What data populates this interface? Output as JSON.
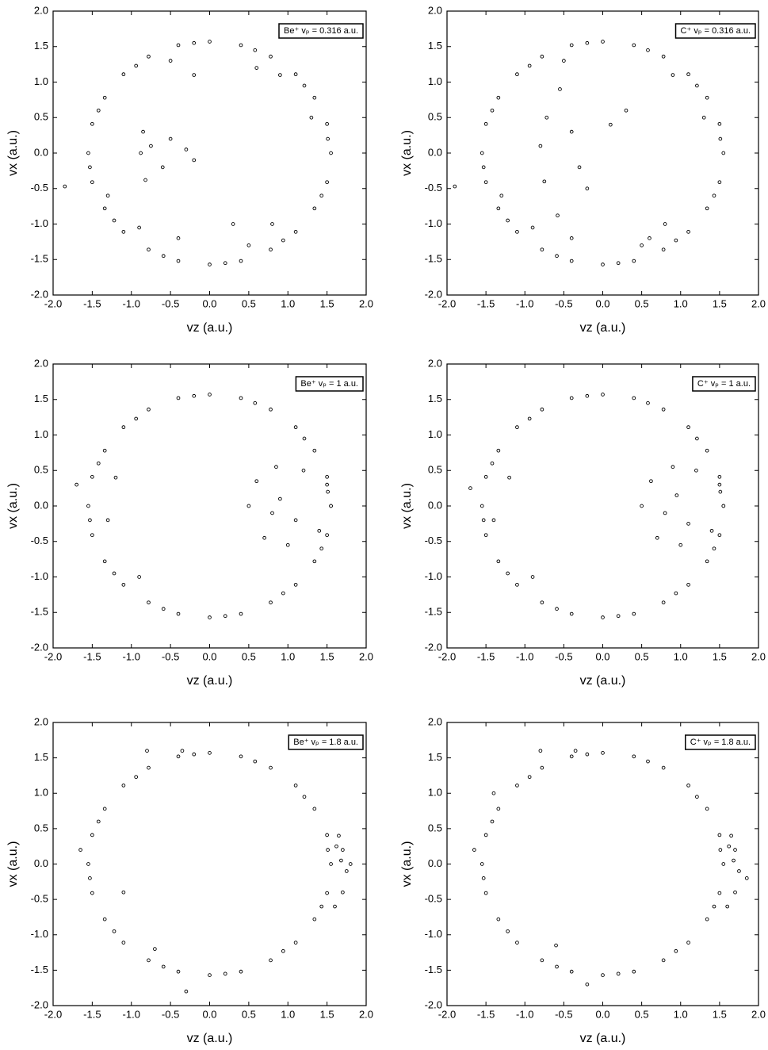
{
  "chart_data": [
    {
      "type": "scatter",
      "annotation": "Be⁺ vₚ = 0.316 a.u.",
      "xlabel": "vz (a.u.)",
      "ylabel": "vx (a.u.)",
      "color": "#000000",
      "xlim": [
        -2,
        2
      ],
      "ylim": [
        -2,
        2
      ],
      "xticks": [
        {
          "value": -2,
          "label": "-2.0"
        },
        {
          "value": -1.5,
          "label": "-1.5"
        },
        {
          "value": -1,
          "label": "-1.0"
        },
        {
          "value": -0.5,
          "label": "-0.5"
        },
        {
          "value": 0,
          "label": "0.0"
        },
        {
          "value": 0.5,
          "label": "0.5"
        },
        {
          "value": 1,
          "label": "1.0"
        },
        {
          "value": 1.5,
          "label": "1.5"
        },
        {
          "value": 2,
          "label": "2.0"
        }
      ],
      "yticks": [
        {
          "value": -2,
          "label": "-2.0"
        },
        {
          "value": -1.5,
          "label": "-1.5"
        },
        {
          "value": -1,
          "label": "-1.0"
        },
        {
          "value": -0.5,
          "label": "-0.5"
        },
        {
          "value": 0,
          "label": "0.0"
        },
        {
          "value": 0.5,
          "label": "0.5"
        },
        {
          "value": 1,
          "label": "1.0"
        },
        {
          "value": 1.5,
          "label": "1.5"
        },
        {
          "value": 2,
          "label": "2.0"
        }
      ],
      "x": [
        1.55,
        1.5,
        1.34,
        1.1,
        0.78,
        0.4,
        0,
        -0.4,
        -0.78,
        -1.1,
        -1.34,
        -1.5,
        -1.55,
        -1.5,
        -1.34,
        -1.1,
        -0.78,
        -0.4,
        0,
        0.4,
        0.78,
        1.1,
        1.34,
        1.5,
        1.51,
        1.21,
        0.58,
        -0.2,
        -0.94,
        -1.42,
        -1.53,
        -1.22,
        -0.59,
        0.2,
        0.94,
        1.43,
        1.3,
        -1.3,
        0.9,
        -0.9,
        0.5,
        -0.5,
        -0.85,
        -0.82,
        -0.88,
        -0.75,
        -0.6,
        -0.5,
        -0.3,
        -0.2,
        0.3,
        -0.2,
        0.6,
        -0.4,
        0.8,
        -1.85
      ],
      "y": [
        0,
        0.41,
        0.78,
        1.11,
        1.36,
        1.52,
        1.57,
        1.52,
        1.36,
        1.11,
        0.78,
        0.41,
        0,
        -0.41,
        -0.78,
        -1.11,
        -1.36,
        -1.52,
        -1.57,
        -1.52,
        -1.36,
        -1.11,
        -0.78,
        -0.41,
        0.2,
        0.95,
        1.45,
        1.55,
        1.23,
        0.6,
        -0.2,
        -0.95,
        -1.45,
        -1.55,
        -1.23,
        -0.6,
        0.5,
        -0.6,
        1.1,
        -1.05,
        -1.3,
        1.3,
        0.3,
        -0.38,
        0,
        0.1,
        -0.2,
        0.2,
        0.05,
        -0.1,
        -1.0,
        1.1,
        1.2,
        -1.2,
        -1.0,
        -0.47
      ]
    },
    {
      "type": "scatter",
      "annotation": "C⁺ vₚ = 0.316 a.u.",
      "xlabel": "vz (a.u.)",
      "ylabel": "vx (a.u.)",
      "color": "#000000",
      "xlim": [
        -2,
        2
      ],
      "ylim": [
        -2,
        2
      ],
      "xticks": [
        {
          "value": -2,
          "label": "-2.0"
        },
        {
          "value": -1.5,
          "label": "-1.5"
        },
        {
          "value": -1,
          "label": "-1.0"
        },
        {
          "value": -0.5,
          "label": "-0.5"
        },
        {
          "value": 0,
          "label": "0.0"
        },
        {
          "value": 0.5,
          "label": "0.5"
        },
        {
          "value": 1,
          "label": "1.0"
        },
        {
          "value": 1.5,
          "label": "1.5"
        },
        {
          "value": 2,
          "label": "2.0"
        }
      ],
      "yticks": [
        {
          "value": -2,
          "label": "-2.0"
        },
        {
          "value": -1.5,
          "label": "-1.5"
        },
        {
          "value": -1,
          "label": "-1.0"
        },
        {
          "value": -0.5,
          "label": "-0.5"
        },
        {
          "value": 0,
          "label": "0.0"
        },
        {
          "value": 0.5,
          "label": "0.5"
        },
        {
          "value": 1,
          "label": "1.0"
        },
        {
          "value": 1.5,
          "label": "1.5"
        },
        {
          "value": 2,
          "label": "2.0"
        }
      ],
      "x": [
        1.55,
        1.5,
        1.34,
        1.1,
        0.78,
        0.4,
        0,
        -0.4,
        -0.78,
        -1.1,
        -1.34,
        -1.5,
        -1.55,
        -1.5,
        -1.34,
        -1.1,
        -0.78,
        -0.4,
        0,
        0.4,
        0.78,
        1.1,
        1.34,
        1.5,
        1.51,
        1.21,
        0.58,
        -0.2,
        -0.94,
        -1.42,
        -1.53,
        -1.22,
        -0.59,
        0.2,
        0.94,
        1.43,
        1.3,
        -1.3,
        0.9,
        -0.9,
        0.5,
        -0.5,
        -0.55,
        -0.72,
        -0.8,
        -0.75,
        -0.58,
        -0.4,
        -0.3,
        0.1,
        0.3,
        -0.2,
        0.6,
        -0.4,
        0.8,
        -1.9
      ],
      "y": [
        0,
        0.41,
        0.78,
        1.11,
        1.36,
        1.52,
        1.57,
        1.52,
        1.36,
        1.11,
        0.78,
        0.41,
        0,
        -0.41,
        -0.78,
        -1.11,
        -1.36,
        -1.52,
        -1.57,
        -1.52,
        -1.36,
        -1.11,
        -0.78,
        -0.41,
        0.2,
        0.95,
        1.45,
        1.55,
        1.23,
        0.6,
        -0.2,
        -0.95,
        -1.45,
        -1.55,
        -1.23,
        -0.6,
        0.5,
        -0.6,
        1.1,
        -1.05,
        -1.3,
        1.3,
        0.9,
        0.5,
        0.1,
        -0.4,
        -0.88,
        0.3,
        -0.2,
        0.4,
        0.6,
        -0.5,
        -1.2,
        -1.2,
        -1.0,
        -0.47
      ]
    },
    {
      "type": "scatter",
      "annotation": "Be⁺ vₚ = 1 a.u.",
      "xlabel": "vz (a.u.)",
      "ylabel": "vx (a.u.)",
      "color": "#000000",
      "xlim": [
        -2,
        2
      ],
      "ylim": [
        -2,
        2
      ],
      "xticks": [
        {
          "value": -2,
          "label": "-2.0"
        },
        {
          "value": -1.5,
          "label": "-1.5"
        },
        {
          "value": -1,
          "label": "-1.0"
        },
        {
          "value": -0.5,
          "label": "-0.5"
        },
        {
          "value": 0,
          "label": "0.0"
        },
        {
          "value": 0.5,
          "label": "0.5"
        },
        {
          "value": 1,
          "label": "1.0"
        },
        {
          "value": 1.5,
          "label": "1.5"
        },
        {
          "value": 2,
          "label": "2.0"
        }
      ],
      "yticks": [
        {
          "value": -2,
          "label": "-2.0"
        },
        {
          "value": -1.5,
          "label": "-1.5"
        },
        {
          "value": -1,
          "label": "-1.0"
        },
        {
          "value": -0.5,
          "label": "-0.5"
        },
        {
          "value": 0,
          "label": "0.0"
        },
        {
          "value": 0.5,
          "label": "0.5"
        },
        {
          "value": 1,
          "label": "1.0"
        },
        {
          "value": 1.5,
          "label": "1.5"
        },
        {
          "value": 2,
          "label": "2.0"
        }
      ],
      "x": [
        1.55,
        1.5,
        1.34,
        1.1,
        0.78,
        0.4,
        0,
        -0.4,
        -0.78,
        -1.1,
        -1.34,
        -1.5,
        -1.55,
        -1.5,
        -1.34,
        -1.1,
        -0.78,
        -0.4,
        0,
        0.4,
        0.78,
        1.1,
        1.34,
        1.5,
        1.51,
        1.21,
        0.58,
        -0.2,
        -0.94,
        -1.42,
        -1.53,
        -1.22,
        -0.59,
        0.2,
        0.94,
        1.43,
        0.5,
        0.6,
        0.85,
        1.2,
        1.5,
        1.55,
        1.4,
        1.0,
        0.7,
        0.9,
        1.1,
        0.8,
        -1.2,
        -0.9,
        -1.3,
        -1.7
      ],
      "y": [
        0,
        0.41,
        0.78,
        1.11,
        1.36,
        1.52,
        1.57,
        1.52,
        1.36,
        1.11,
        0.78,
        0.41,
        0,
        -0.41,
        -0.78,
        -1.11,
        -1.36,
        -1.52,
        -1.57,
        -1.52,
        -1.36,
        -1.11,
        -0.78,
        -0.41,
        0.2,
        0.95,
        1.45,
        1.55,
        1.23,
        0.6,
        -0.2,
        -0.95,
        -1.45,
        -1.55,
        -1.23,
        -0.6,
        0,
        0.35,
        0.55,
        0.5,
        0.3,
        0,
        -0.35,
        -0.55,
        -0.45,
        0.1,
        -0.2,
        -0.1,
        0.4,
        -1.0,
        -0.2,
        0.3
      ]
    },
    {
      "type": "scatter",
      "annotation": "C⁺ vₚ = 1 a.u.",
      "xlabel": "vz (a.u.)",
      "ylabel": "vx (a.u.)",
      "color": "#000000",
      "xlim": [
        -2,
        2
      ],
      "ylim": [
        -2,
        2
      ],
      "xticks": [
        {
          "value": -2,
          "label": "-2.0"
        },
        {
          "value": -1.5,
          "label": "-1.5"
        },
        {
          "value": -1,
          "label": "-1.0"
        },
        {
          "value": -0.5,
          "label": "-0.5"
        },
        {
          "value": 0,
          "label": "0.0"
        },
        {
          "value": 0.5,
          "label": "0.5"
        },
        {
          "value": 1,
          "label": "1.0"
        },
        {
          "value": 1.5,
          "label": "1.5"
        },
        {
          "value": 2,
          "label": "2.0"
        }
      ],
      "yticks": [
        {
          "value": -2,
          "label": "-2.0"
        },
        {
          "value": -1.5,
          "label": "-1.5"
        },
        {
          "value": -1,
          "label": "-1.0"
        },
        {
          "value": -0.5,
          "label": "-0.5"
        },
        {
          "value": 0,
          "label": "0.0"
        },
        {
          "value": 0.5,
          "label": "0.5"
        },
        {
          "value": 1,
          "label": "1.0"
        },
        {
          "value": 1.5,
          "label": "1.5"
        },
        {
          "value": 2,
          "label": "2.0"
        }
      ],
      "x": [
        1.55,
        1.5,
        1.34,
        1.1,
        0.78,
        0.4,
        0,
        -0.4,
        -0.78,
        -1.1,
        -1.34,
        -1.5,
        -1.55,
        -1.5,
        -1.34,
        -1.1,
        -0.78,
        -0.4,
        0,
        0.4,
        0.78,
        1.1,
        1.34,
        1.5,
        1.51,
        1.21,
        0.58,
        -0.2,
        -0.94,
        -1.42,
        -1.53,
        -1.22,
        -0.59,
        0.2,
        0.94,
        1.43,
        0.5,
        0.62,
        0.9,
        1.2,
        1.5,
        1.55,
        1.4,
        1.0,
        0.7,
        0.95,
        1.1,
        0.8,
        -1.2,
        -0.9,
        -1.4,
        -1.7
      ],
      "y": [
        0,
        0.41,
        0.78,
        1.11,
        1.36,
        1.52,
        1.57,
        1.52,
        1.36,
        1.11,
        0.78,
        0.41,
        0,
        -0.41,
        -0.78,
        -1.11,
        -1.36,
        -1.52,
        -1.57,
        -1.52,
        -1.36,
        -1.11,
        -0.78,
        -0.41,
        0.2,
        0.95,
        1.45,
        1.55,
        1.23,
        0.6,
        -0.2,
        -0.95,
        -1.45,
        -1.55,
        -1.23,
        -0.6,
        0,
        0.35,
        0.55,
        0.5,
        0.3,
        0,
        -0.35,
        -0.55,
        -0.45,
        0.15,
        -0.25,
        -0.1,
        0.4,
        -1.0,
        -0.2,
        0.25
      ]
    },
    {
      "type": "scatter",
      "annotation": "Be⁺ vₚ = 1.8 a.u.",
      "xlabel": "vz (a.u.)",
      "ylabel": "vx (a.u.)",
      "color": "#000000",
      "xlim": [
        -2,
        2
      ],
      "ylim": [
        -2,
        2
      ],
      "xticks": [
        {
          "value": -2,
          "label": "-2.0"
        },
        {
          "value": -1.5,
          "label": "-1.5"
        },
        {
          "value": -1,
          "label": "-1.0"
        },
        {
          "value": -0.5,
          "label": "-0.5"
        },
        {
          "value": 0,
          "label": "0.0"
        },
        {
          "value": 0.5,
          "label": "0.5"
        },
        {
          "value": 1,
          "label": "1.0"
        },
        {
          "value": 1.5,
          "label": "1.5"
        },
        {
          "value": 2,
          "label": "2.0"
        }
      ],
      "yticks": [
        {
          "value": -2,
          "label": "-2.0"
        },
        {
          "value": -1.5,
          "label": "-1.5"
        },
        {
          "value": -1,
          "label": "-1.0"
        },
        {
          "value": -0.5,
          "label": "-0.5"
        },
        {
          "value": 0,
          "label": "0.0"
        },
        {
          "value": 0.5,
          "label": "0.5"
        },
        {
          "value": 1,
          "label": "1.0"
        },
        {
          "value": 1.5,
          "label": "1.5"
        },
        {
          "value": 2,
          "label": "2.0"
        }
      ],
      "x": [
        1.55,
        1.5,
        1.34,
        1.1,
        0.78,
        0.4,
        0,
        -0.4,
        -0.78,
        -1.1,
        -1.34,
        -1.5,
        -1.55,
        -1.5,
        -1.34,
        -1.1,
        -0.78,
        -0.4,
        0,
        0.4,
        0.78,
        1.1,
        1.34,
        1.5,
        1.51,
        1.21,
        0.58,
        -0.2,
        -0.94,
        -1.42,
        -1.53,
        -1.22,
        -0.59,
        0.2,
        0.94,
        1.43,
        1.7,
        1.75,
        1.8,
        1.65,
        1.7,
        1.6,
        1.68,
        1.62,
        -1.65,
        -0.7,
        -1.1,
        -0.3,
        -0.35,
        -0.8
      ],
      "y": [
        0,
        0.41,
        0.78,
        1.11,
        1.36,
        1.52,
        1.57,
        1.52,
        1.36,
        1.11,
        0.78,
        0.41,
        0,
        -0.41,
        -0.78,
        -1.11,
        -1.36,
        -1.52,
        -1.57,
        -1.52,
        -1.36,
        -1.11,
        -0.78,
        -0.41,
        0.2,
        0.95,
        1.45,
        1.55,
        1.23,
        0.6,
        -0.2,
        -0.95,
        -1.45,
        -1.55,
        -1.23,
        -0.6,
        0.2,
        -0.1,
        0,
        0.4,
        -0.4,
        -0.6,
        0.05,
        0.25,
        0.2,
        -1.2,
        -0.4,
        -1.8,
        1.6,
        1.6
      ]
    },
    {
      "type": "scatter",
      "annotation": "C⁺ vₚ = 1.8 a.u.",
      "xlabel": "vz (a.u.)",
      "ylabel": "vx (a.u.)",
      "color": "#000000",
      "xlim": [
        -2,
        2
      ],
      "ylim": [
        -2,
        2
      ],
      "xticks": [
        {
          "value": -2,
          "label": "-2.0"
        },
        {
          "value": -1.5,
          "label": "-1.5"
        },
        {
          "value": -1,
          "label": "-1.0"
        },
        {
          "value": -0.5,
          "label": "-0.5"
        },
        {
          "value": 0,
          "label": "0.0"
        },
        {
          "value": 0.5,
          "label": "0.5"
        },
        {
          "value": 1,
          "label": "1.0"
        },
        {
          "value": 1.5,
          "label": "1.5"
        },
        {
          "value": 2,
          "label": "2.0"
        }
      ],
      "yticks": [
        {
          "value": -2,
          "label": "-2.0"
        },
        {
          "value": -1.5,
          "label": "-1.5"
        },
        {
          "value": -1,
          "label": "-1.0"
        },
        {
          "value": -0.5,
          "label": "-0.5"
        },
        {
          "value": 0,
          "label": "0.0"
        },
        {
          "value": 0.5,
          "label": "0.5"
        },
        {
          "value": 1,
          "label": "1.0"
        },
        {
          "value": 1.5,
          "label": "1.5"
        },
        {
          "value": 2,
          "label": "2.0"
        }
      ],
      "x": [
        1.55,
        1.5,
        1.34,
        1.1,
        0.78,
        0.4,
        0,
        -0.4,
        -0.78,
        -1.1,
        -1.34,
        -1.5,
        -1.55,
        -1.5,
        -1.34,
        -1.1,
        -0.78,
        -0.4,
        0,
        0.4,
        0.78,
        1.1,
        1.34,
        1.5,
        1.51,
        1.21,
        0.58,
        -0.2,
        -0.94,
        -1.42,
        -1.53,
        -1.22,
        -0.59,
        0.2,
        0.94,
        1.43,
        1.7,
        1.75,
        1.85,
        1.65,
        1.7,
        1.6,
        1.68,
        1.62,
        -1.65,
        -0.6,
        -1.4,
        -0.2,
        -0.35,
        -0.8
      ],
      "y": [
        0,
        0.41,
        0.78,
        1.11,
        1.36,
        1.52,
        1.57,
        1.52,
        1.36,
        1.11,
        0.78,
        0.41,
        0,
        -0.41,
        -0.78,
        -1.11,
        -1.36,
        -1.52,
        -1.57,
        -1.52,
        -1.36,
        -1.11,
        -0.78,
        -0.41,
        0.2,
        0.95,
        1.45,
        1.55,
        1.23,
        0.6,
        -0.2,
        -0.95,
        -1.45,
        -1.55,
        -1.23,
        -0.6,
        0.2,
        -0.1,
        -0.2,
        0.4,
        -0.4,
        -0.6,
        0.05,
        0.25,
        0.2,
        -1.15,
        1.0,
        -1.7,
        1.6,
        1.6
      ]
    }
  ]
}
